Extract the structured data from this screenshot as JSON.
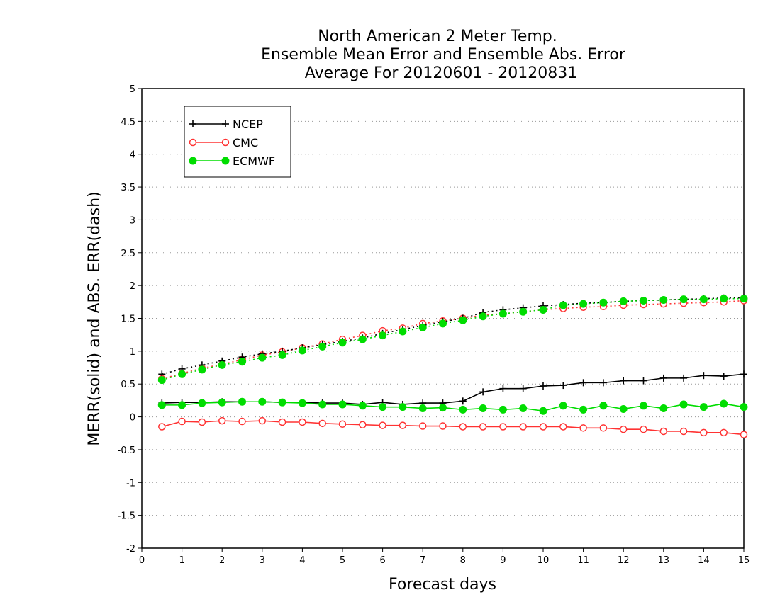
{
  "chart_data": {
    "type": "line",
    "title_lines": [
      "North American 2 Meter Temp.",
      "Ensemble Mean Error and Ensemble Abs. Error",
      "Average For 20120601 - 20120831"
    ],
    "xlabel": "Forecast days",
    "ylabel": "MERR(solid) and ABS. ERR(dash)",
    "xlim": [
      0,
      15
    ],
    "ylim": [
      -2,
      5
    ],
    "x_ticks": [
      0,
      1,
      2,
      3,
      4,
      5,
      6,
      7,
      8,
      9,
      10,
      11,
      12,
      13,
      14,
      15
    ],
    "y_ticks": [
      -2,
      -1.5,
      -1,
      -0.5,
      0,
      0.5,
      1,
      1.5,
      2,
      2.5,
      3,
      3.5,
      4,
      4.5,
      5
    ],
    "y_tick_labels": [
      "-2",
      "-1.5",
      "-1",
      "-0.5",
      "0",
      "0.5",
      "1",
      "1.5",
      "2",
      "2.5",
      "3",
      "3.5",
      "4",
      "4.5",
      "5"
    ],
    "x_tick_labels": [
      "0",
      "1",
      "2",
      "3",
      "4",
      "5",
      "6",
      "7",
      "8",
      "9",
      "10",
      "11",
      "12",
      "13",
      "14",
      "15"
    ],
    "grid": "horizontal-dotted",
    "legend_position": "top-left",
    "x": [
      0.5,
      1,
      1.5,
      2,
      2.5,
      3,
      3.5,
      4,
      4.5,
      5,
      5.5,
      6,
      6.5,
      7,
      7.5,
      8,
      8.5,
      9,
      9.5,
      10,
      10.5,
      11,
      11.5,
      12,
      12.5,
      13,
      13.5,
      14,
      14.5,
      15
    ],
    "series": [
      {
        "name": "NCEP",
        "color": "#000000",
        "marker": "plus",
        "merr": [
          0.21,
          0.22,
          0.22,
          0.23,
          0.23,
          0.23,
          0.22,
          0.22,
          0.21,
          0.21,
          0.19,
          0.22,
          0.19,
          0.21,
          0.21,
          0.24,
          0.38,
          0.43,
          0.43,
          0.47,
          0.48,
          0.52,
          0.52,
          0.55,
          0.55,
          0.59,
          0.59,
          0.63,
          0.62,
          0.65
        ],
        "abs_err": [
          0.65,
          0.73,
          0.79,
          0.85,
          0.91,
          0.96,
          1.0,
          1.05,
          1.1,
          1.15,
          1.2,
          1.27,
          1.33,
          1.39,
          1.45,
          1.5,
          1.59,
          1.63,
          1.66,
          1.69,
          1.71,
          1.73,
          1.74,
          1.76,
          1.77,
          1.78,
          1.79,
          1.8,
          1.81,
          1.81
        ]
      },
      {
        "name": "CMC",
        "color": "#ff3333",
        "marker": "open-circle",
        "merr": [
          -0.15,
          -0.07,
          -0.08,
          -0.06,
          -0.07,
          -0.06,
          -0.08,
          -0.08,
          -0.1,
          -0.11,
          -0.12,
          -0.13,
          -0.13,
          -0.14,
          -0.14,
          -0.15,
          -0.15,
          -0.15,
          -0.15,
          -0.15,
          -0.15,
          -0.17,
          -0.17,
          -0.19,
          -0.19,
          -0.22,
          -0.22,
          -0.24,
          -0.24,
          -0.27
        ],
        "abs_err": [
          0.58,
          0.66,
          0.74,
          0.8,
          0.87,
          0.94,
          0.99,
          1.05,
          1.11,
          1.18,
          1.24,
          1.31,
          1.35,
          1.42,
          1.46,
          1.5,
          1.55,
          1.57,
          1.6,
          1.63,
          1.65,
          1.67,
          1.68,
          1.7,
          1.71,
          1.72,
          1.73,
          1.74,
          1.75,
          1.77
        ]
      },
      {
        "name": "ECMWF",
        "color": "#00dd00",
        "marker": "filled-circle",
        "merr": [
          0.18,
          0.18,
          0.21,
          0.22,
          0.23,
          0.23,
          0.22,
          0.21,
          0.19,
          0.19,
          0.17,
          0.15,
          0.15,
          0.13,
          0.14,
          0.11,
          0.13,
          0.11,
          0.13,
          0.09,
          0.17,
          0.11,
          0.17,
          0.12,
          0.17,
          0.13,
          0.19,
          0.15,
          0.2,
          0.15
        ],
        "abs_err": [
          0.56,
          0.65,
          0.72,
          0.79,
          0.84,
          0.9,
          0.94,
          1.01,
          1.07,
          1.13,
          1.18,
          1.24,
          1.3,
          1.36,
          1.42,
          1.47,
          1.53,
          1.57,
          1.6,
          1.63,
          1.7,
          1.72,
          1.74,
          1.76,
          1.77,
          1.78,
          1.79,
          1.79,
          1.8,
          1.8
        ]
      }
    ]
  }
}
